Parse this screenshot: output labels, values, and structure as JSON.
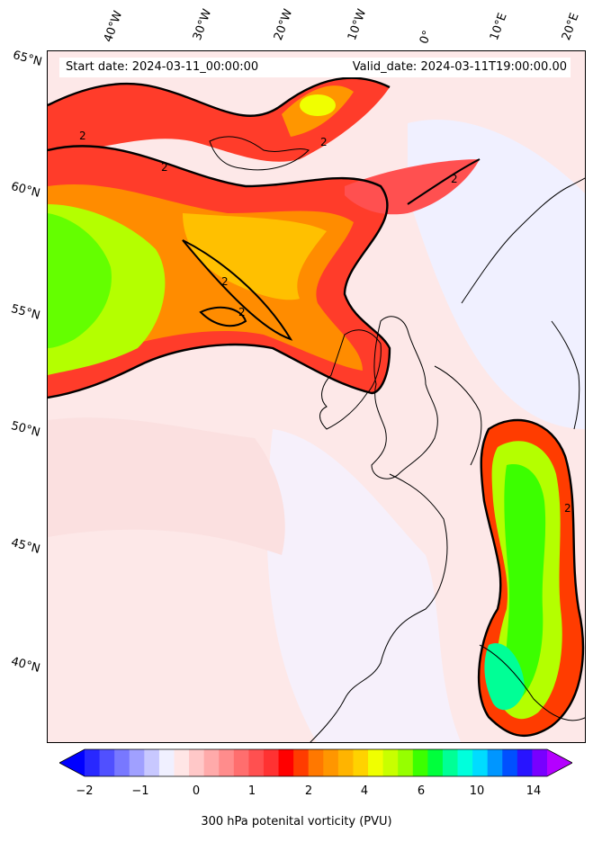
{
  "info": {
    "start": "Start date: 2024-03-11_00:00:00",
    "valid": "Valid_date: 2024-03-11T19:00:00.00"
  },
  "lon_labels": [
    "40°W",
    "30°W",
    "20°W",
    "10°W",
    "0°",
    "10°E",
    "20°E"
  ],
  "lat_labels": [
    "65°N",
    "60°N",
    "55°N",
    "50°N",
    "45°N",
    "40°N"
  ],
  "contour_label": "2",
  "colorbar": {
    "title": "300 hPa potenital vorticity (PVU)",
    "ticks": [
      "−2",
      "−1",
      "0",
      "1",
      "2",
      "4",
      "6",
      "10",
      "14"
    ],
    "colors": [
      "#0000ff",
      "#2828ff",
      "#5050ff",
      "#7878ff",
      "#a0a0ff",
      "#c8c8ff",
      "#f0f0ff",
      "#ffe6e6",
      "#ffc8c8",
      "#ffaaaa",
      "#ff8c8c",
      "#ff6e6e",
      "#ff5050",
      "#ff3232",
      "#ff0000",
      "#ff3c00",
      "#ff7800",
      "#ff9600",
      "#ffb400",
      "#ffd200",
      "#f0ff00",
      "#c8ff00",
      "#96ff00",
      "#3cff00",
      "#00ff3c",
      "#00ff96",
      "#00ffdc",
      "#00dcff",
      "#0096ff",
      "#0050ff",
      "#2814ff",
      "#7800ff",
      "#b400ff"
    ]
  }
}
